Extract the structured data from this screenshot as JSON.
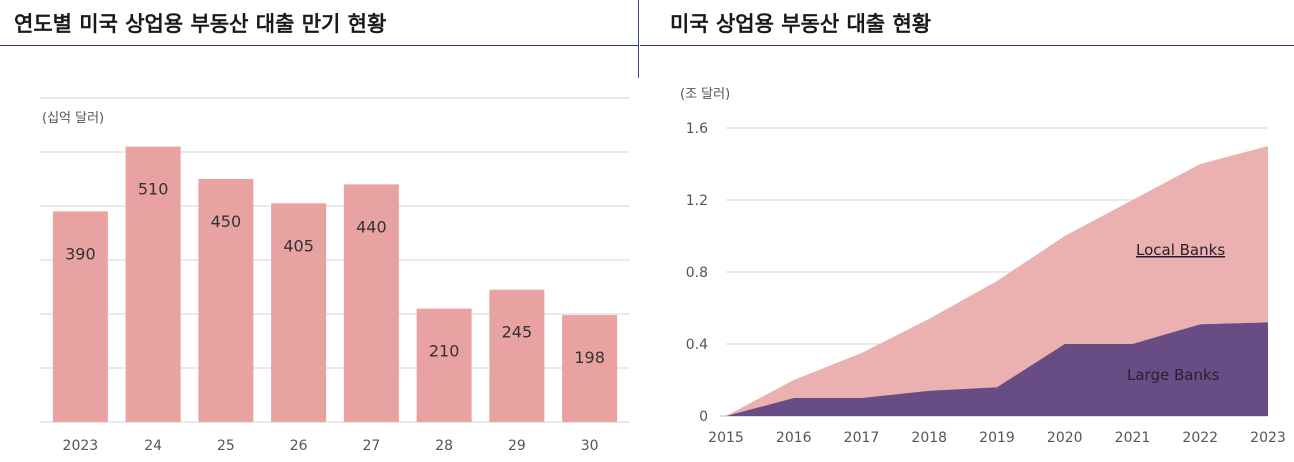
{
  "left": {
    "title": "연도별 미국 상업용 부동산 대출 만기 현황"
  },
  "right": {
    "title": "미국 상업용 부동산 대출 현황"
  },
  "colors": {
    "bar": "#e8a2a2",
    "local": "#ebb0b0",
    "large": "#684d84",
    "grid": "#d4d4d4",
    "rule": "#2f3f6c"
  },
  "chart_data": [
    {
      "type": "bar",
      "unit": "(십억 달러)",
      "categories": [
        "2023",
        "24",
        "25",
        "26",
        "27",
        "28",
        "29",
        "30"
      ],
      "values": [
        390,
        510,
        450,
        405,
        440,
        210,
        245,
        198
      ],
      "ylim": [
        0,
        600
      ],
      "grid": true,
      "data_labels": [
        "390",
        "510",
        "450",
        "405",
        "440",
        "210",
        "245",
        "198"
      ]
    },
    {
      "type": "area",
      "unit": "(조 달러)",
      "x": [
        2015,
        2016,
        2017,
        2018,
        2019,
        2020,
        2021,
        2022,
        2023
      ],
      "x_tick_labels": [
        "2015",
        "2016",
        "2017",
        "2018",
        "2019",
        "2020",
        "2021",
        "2022",
        "2023"
      ],
      "y_tick_labels": [
        "0",
        "0.4",
        "0.8",
        "1.2",
        "1.6"
      ],
      "ylim": [
        0,
        1.6
      ],
      "grid": true,
      "stacked": true,
      "series": [
        {
          "name": "Large Banks",
          "values": [
            0,
            0.1,
            0.1,
            0.14,
            0.16,
            0.4,
            0.4,
            0.51,
            0.52
          ]
        },
        {
          "name": "Local Banks",
          "values": [
            0,
            0.1,
            0.25,
            0.4,
            0.59,
            0.6,
            0.8,
            0.89,
            0.98
          ]
        }
      ]
    }
  ]
}
